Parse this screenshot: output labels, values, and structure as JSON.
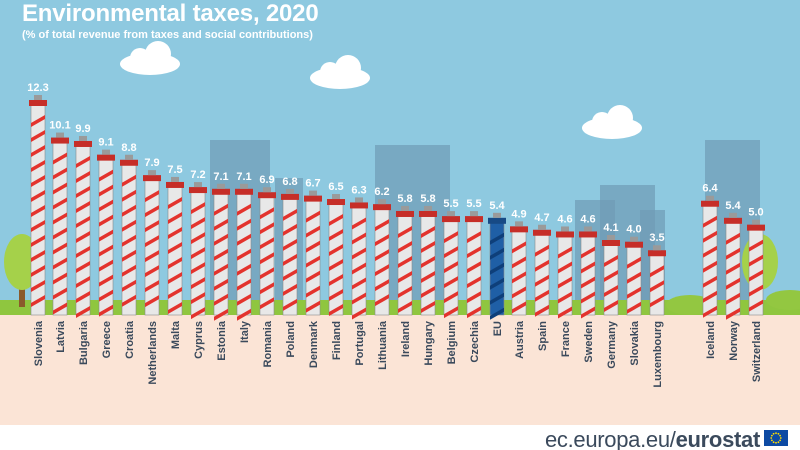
{
  "title": "Environmental taxes, 2020",
  "subtitle": "(% of total revenue from taxes and social contributions)",
  "branding": {
    "site_prefix": "ec.europa.eu/",
    "site_name": "eurostat"
  },
  "colors": {
    "sky": "#8ec9e0",
    "ground": "#fbe4d6",
    "grass": "#8fc63f",
    "chimney": "#e8e8e8",
    "stripe": "#e3332d",
    "eu_chimney": "#1f5fa6",
    "label": "#3b4a5c",
    "value_label": "#ffffff",
    "building": "#6f9bb5"
  },
  "chart_data": {
    "type": "bar",
    "title": "Environmental taxes, 2020",
    "subtitle": "(% of total revenue from taxes and social contributions)",
    "xlabel": "",
    "ylabel": "",
    "ylim": [
      0,
      13
    ],
    "grid": false,
    "categories": [
      "Slovenia",
      "Latvia",
      "Bulgaria",
      "Greece",
      "Croatia",
      "Netherlands",
      "Malta",
      "Cyprus",
      "Estonia",
      "Italy",
      "Romania",
      "Poland",
      "Denmark",
      "Finland",
      "Portugal",
      "Lithuania",
      "Ireland",
      "Hungary",
      "Belgium",
      "Czechia",
      "EU",
      "Austria",
      "Spain",
      "France",
      "Sweden",
      "Germany",
      "Slovakia",
      "Luxembourg",
      "Iceland",
      "Norway",
      "Switzerland"
    ],
    "values": [
      12.3,
      10.1,
      9.9,
      9.1,
      8.8,
      7.9,
      7.5,
      7.2,
      7.1,
      7.1,
      6.9,
      6.8,
      6.7,
      6.5,
      6.3,
      6.2,
      5.8,
      5.8,
      5.5,
      5.5,
      5.4,
      4.9,
      4.7,
      4.6,
      4.6,
      4.1,
      4.0,
      3.5,
      6.4,
      5.4,
      5.0
    ],
    "value_labels": [
      "12.3",
      "10.1",
      "9.9",
      "9.1",
      "8.8",
      "7.9",
      "7.5",
      "7.2",
      "7.1",
      "7.1",
      "6.9",
      "6.8",
      "6.7",
      "6.5",
      "6.3",
      "6.2",
      "5.8",
      "5.8",
      "5.5",
      "5.5",
      "5.4",
      "4.9",
      "4.7",
      "4.6",
      "4.6",
      "4.1",
      "4.0",
      "3.5",
      "6.4",
      "5.4",
      "5.0"
    ],
    "highlight": [
      "EU"
    ]
  }
}
